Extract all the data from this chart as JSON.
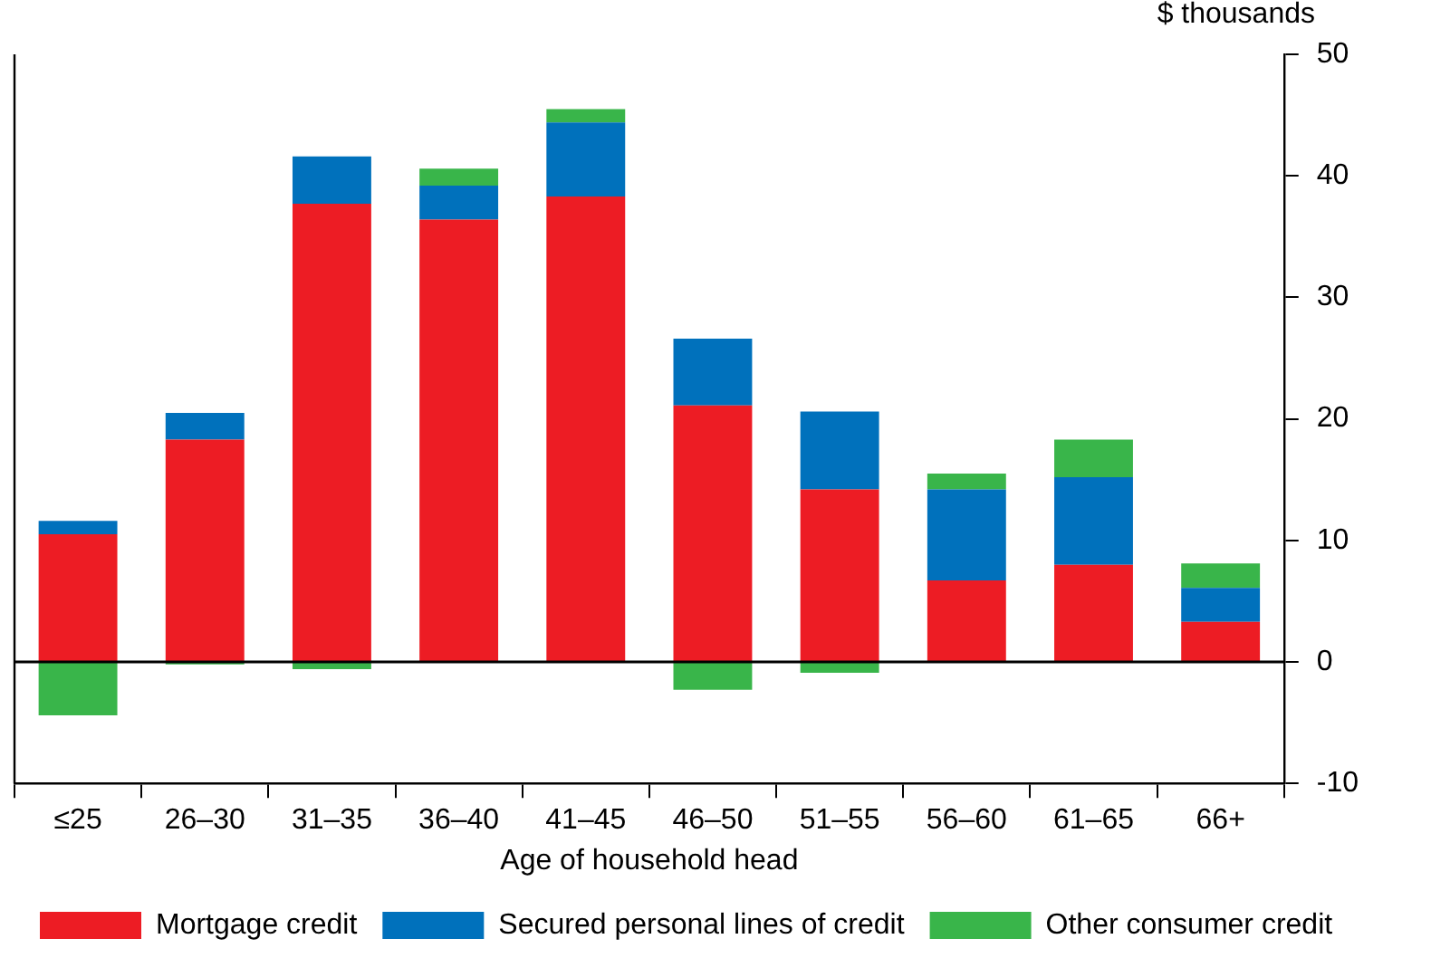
{
  "chart_data": {
    "type": "bar",
    "stacked": true,
    "xlabel": "Age of household head",
    "ylabel": "$ thousands",
    "categories": [
      "≤25",
      "26–30",
      "31–35",
      "36–40",
      "41–45",
      "46–50",
      "51–55",
      "56–60",
      "61–65",
      "66+"
    ],
    "series": [
      {
        "name": "Mortgage credit",
        "color": "#ed1c24",
        "values": [
          10.5,
          18.3,
          37.7,
          36.4,
          38.3,
          21.1,
          14.2,
          6.7,
          8.0,
          3.3
        ]
      },
      {
        "name": "Secured personal lines of credit",
        "color": "#0071bc",
        "values": [
          1.1,
          2.2,
          3.9,
          2.8,
          6.1,
          5.5,
          6.4,
          7.5,
          7.2,
          2.8
        ]
      },
      {
        "name": "Other consumer credit",
        "color": "#39b54a",
        "values": [
          -4.4,
          -0.2,
          -0.6,
          1.4,
          1.1,
          -2.3,
          -0.9,
          1.3,
          3.1,
          2.0
        ]
      }
    ],
    "ylim": [
      -10,
      50
    ],
    "yticks": [
      -10,
      0,
      10,
      20,
      30,
      40,
      50
    ],
    "ref_lines": [
      {
        "axis": "y",
        "value": 0,
        "color": "#000000"
      }
    ],
    "grid": false,
    "legend": "bottom"
  }
}
